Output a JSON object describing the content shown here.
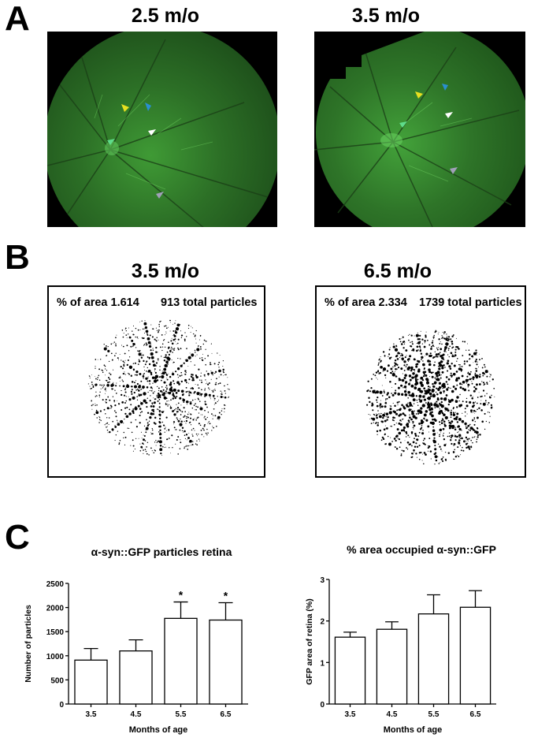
{
  "panels": {
    "a": {
      "letter": "A",
      "left_title": "2.5 m/o",
      "right_title": "3.5 m/o"
    },
    "b": {
      "letter": "B",
      "left": {
        "title": "3.5 m/o",
        "area_text": "% of area 1.614",
        "particles_text": "913 total particles"
      },
      "right": {
        "title": "6.5 m/o",
        "area_text": "% of area 2.334",
        "particles_text": "1739 total particles"
      }
    },
    "c": {
      "letter": "C"
    }
  },
  "arrow_colors": {
    "yellow": "#e8e020",
    "blue": "#2a8fd0",
    "white": "#ffffff",
    "green": "#5fdc8a",
    "gray": "#a0a0b8"
  },
  "chart_data": [
    {
      "type": "bar",
      "title": "α-syn::GFP particles retina",
      "xlabel": "Months of age",
      "ylabel": "Number of particles",
      "categories": [
        "3.5",
        "4.5",
        "5.5",
        "6.5"
      ],
      "values": [
        910,
        1100,
        1775,
        1740
      ],
      "errors": [
        240,
        230,
        340,
        360
      ],
      "significance": [
        "",
        "",
        "*",
        "*"
      ],
      "ylim": [
        0,
        2500
      ],
      "yticks": [
        "0",
        "500",
        "1000",
        "1500",
        "2000",
        "2500"
      ]
    },
    {
      "type": "bar",
      "title": "% area occupied α-syn::GFP",
      "xlabel": "Months of age",
      "ylabel": "GFP area of retina (%)",
      "categories": [
        "3.5",
        "4.5",
        "5.5",
        "6.5"
      ],
      "values": [
        1.61,
        1.8,
        2.17,
        2.33
      ],
      "errors": [
        0.12,
        0.18,
        0.46,
        0.4
      ],
      "significance": [
        "",
        "",
        "",
        ""
      ],
      "ylim": [
        0,
        3
      ],
      "yticks": [
        "0",
        "1",
        "2",
        "3"
      ]
    }
  ]
}
